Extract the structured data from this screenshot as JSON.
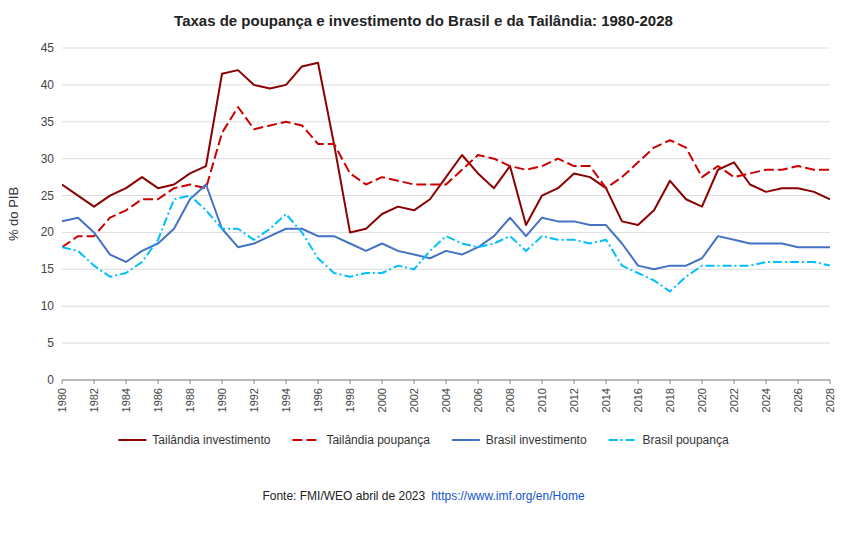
{
  "chart_data": {
    "type": "line",
    "title": "Taxas de poupança e investimento do Brasil e da Tailândia: 1980-2028",
    "y_label": "% do PIB",
    "annotations": [
      "Fonte: FMI/WEO abril de 2023 ",
      "https://www.imf.org/en/Home"
    ],
    "x": [
      1980,
      1981,
      1982,
      1983,
      1984,
      1985,
      1986,
      1987,
      1988,
      1989,
      1990,
      1991,
      1992,
      1993,
      1994,
      1995,
      1996,
      1997,
      1998,
      1999,
      2000,
      2001,
      2002,
      2003,
      2004,
      2005,
      2006,
      2007,
      2008,
      2009,
      2010,
      2011,
      2012,
      2013,
      2014,
      2015,
      2016,
      2017,
      2018,
      2019,
      2020,
      2021,
      2022,
      2023,
      2024,
      2025,
      2026,
      2027,
      2028
    ],
    "xlim": [
      1980,
      2028
    ],
    "xticks": [
      1980,
      1982,
      1984,
      1986,
      1988,
      1990,
      1992,
      1994,
      1996,
      1998,
      2000,
      2002,
      2004,
      2006,
      2008,
      2010,
      2012,
      2014,
      2016,
      2018,
      2020,
      2022,
      2024,
      2026,
      2028
    ],
    "ylim": [
      0,
      45
    ],
    "yticks": [
      0,
      5,
      10,
      15,
      20,
      25,
      30,
      35,
      40,
      45
    ],
    "grid": true,
    "legend": "bottom",
    "series": [
      {
        "name": "Tailândia investimento",
        "color": "#8B0000",
        "line_style": "solid",
        "values": [
          26.5,
          25.0,
          23.5,
          25.0,
          26.0,
          27.5,
          26.0,
          26.5,
          28.0,
          29.0,
          41.5,
          42.0,
          40.0,
          39.5,
          40.0,
          42.5,
          43.0,
          32.0,
          20.0,
          20.5,
          22.5,
          23.5,
          23.0,
          24.5,
          27.5,
          30.5,
          28.0,
          26.0,
          29.0,
          21.0,
          25.0,
          26.0,
          28.0,
          27.5,
          26.0,
          21.5,
          21.0,
          23.0,
          27.0,
          24.5,
          23.5,
          28.5,
          29.5,
          26.5,
          25.5,
          26.0,
          26.0,
          25.5,
          24.5
        ]
      },
      {
        "name": "Tailândia poupança",
        "color": "#CC0000",
        "line_style": "dashed",
        "values": [
          18.0,
          19.5,
          19.5,
          22.0,
          23.0,
          24.5,
          24.5,
          26.0,
          26.5,
          26.0,
          33.5,
          37.0,
          34.0,
          34.5,
          35.0,
          34.5,
          32.0,
          32.0,
          28.0,
          26.5,
          27.5,
          27.0,
          26.5,
          26.5,
          26.5,
          28.5,
          30.5,
          30.0,
          29.0,
          28.5,
          29.0,
          30.0,
          29.0,
          29.0,
          26.0,
          27.5,
          29.5,
          31.5,
          32.5,
          31.5,
          27.5,
          29.0,
          27.5,
          28.0,
          28.5,
          28.5,
          29.0,
          28.5,
          28.5
        ]
      },
      {
        "name": "Brasil investimento",
        "color": "#4472C4",
        "line_style": "solid",
        "values": [
          21.5,
          22.0,
          20.0,
          17.0,
          16.0,
          17.5,
          18.5,
          20.5,
          24.5,
          26.5,
          20.5,
          18.0,
          18.5,
          19.5,
          20.5,
          20.5,
          19.5,
          19.5,
          18.5,
          17.5,
          18.5,
          17.5,
          17.0,
          16.5,
          17.5,
          17.0,
          18.0,
          19.5,
          22.0,
          19.5,
          22.0,
          21.5,
          21.5,
          21.0,
          21.0,
          18.5,
          15.5,
          15.0,
          15.5,
          15.5,
          16.5,
          19.5,
          19.0,
          18.5,
          18.5,
          18.5,
          18.0,
          18.0,
          18.0
        ]
      },
      {
        "name": "Brasil poupança",
        "color": "#00BFFF",
        "line_style": "dashdot",
        "values": [
          18.0,
          17.5,
          15.5,
          14.0,
          14.5,
          16.0,
          19.0,
          24.5,
          25.0,
          23.0,
          20.5,
          20.5,
          19.0,
          20.5,
          22.5,
          20.0,
          16.5,
          14.5,
          14.0,
          14.5,
          14.5,
          15.5,
          15.0,
          17.5,
          19.5,
          18.5,
          18.0,
          18.5,
          19.5,
          17.5,
          19.5,
          19.0,
          19.0,
          18.5,
          19.0,
          15.5,
          14.5,
          13.5,
          12.0,
          14.0,
          15.5,
          15.5,
          15.5,
          15.5,
          16.0,
          16.0,
          16.0,
          16.0,
          15.5
        ]
      }
    ]
  }
}
